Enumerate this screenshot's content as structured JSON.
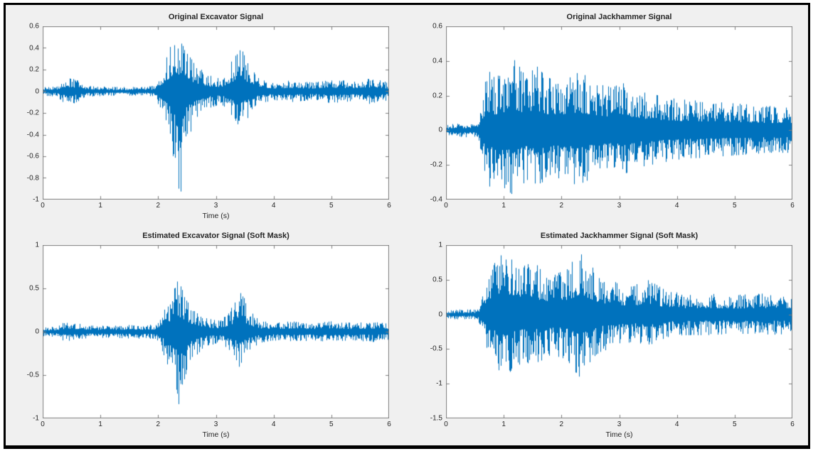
{
  "figure": {
    "background_color": "#f0f0f0",
    "frame_color": "#000000",
    "axes_box_color": "#808080",
    "line_color": "#0072BD",
    "text_color": "#262626"
  },
  "chart_data": [
    {
      "id": "original-excavator",
      "type": "line",
      "title": "Original Excavator Signal",
      "xlabel": "Time (s)",
      "ylabel": "",
      "xlim": [
        0,
        6
      ],
      "ylim": [
        -1,
        0.6
      ],
      "xticks": [
        0,
        1,
        2,
        3,
        4,
        5,
        6
      ],
      "yticks": [
        0.6,
        0.4,
        0.2,
        0,
        -0.2,
        -0.4,
        -0.6,
        -0.8,
        -1
      ],
      "grid": false,
      "legend": "none",
      "series_color": "#0072BD",
      "envelope": {
        "t": [
          0,
          0.25,
          0.35,
          0.5,
          0.65,
          0.8,
          1.2,
          1.6,
          1.95,
          2.05,
          2.2,
          2.3,
          2.38,
          2.5,
          2.65,
          2.85,
          3.1,
          3.3,
          3.42,
          3.55,
          3.75,
          4.0,
          4.3,
          4.7,
          5.0,
          5.4,
          5.7,
          6.0
        ],
        "pos": [
          0.04,
          0.05,
          0.11,
          0.12,
          0.09,
          0.05,
          0.04,
          0.04,
          0.05,
          0.14,
          0.4,
          0.57,
          0.5,
          0.35,
          0.25,
          0.15,
          0.12,
          0.3,
          0.45,
          0.28,
          0.12,
          0.08,
          0.1,
          0.08,
          0.11,
          0.09,
          0.12,
          0.08
        ],
        "neg": [
          -0.04,
          -0.05,
          -0.11,
          -0.12,
          -0.09,
          -0.05,
          -0.04,
          -0.04,
          -0.05,
          -0.18,
          -0.45,
          -0.75,
          -1.0,
          -0.45,
          -0.28,
          -0.16,
          -0.12,
          -0.25,
          -0.33,
          -0.25,
          -0.12,
          -0.08,
          -0.1,
          -0.08,
          -0.11,
          -0.09,
          -0.12,
          -0.08
        ]
      }
    },
    {
      "id": "original-jackhammer",
      "type": "line",
      "title": "Original Jackhammer Signal",
      "xlabel": "",
      "ylabel": "",
      "xlim": [
        0,
        6
      ],
      "ylim": [
        -0.4,
        0.6
      ],
      "xticks": [
        0,
        1,
        2,
        3,
        4,
        5,
        6
      ],
      "yticks": [
        0.6,
        0.4,
        0.2,
        0,
        -0.2,
        -0.4
      ],
      "grid": false,
      "legend": "none",
      "series_color": "#0072BD",
      "envelope": {
        "t": [
          0,
          0.15,
          0.55,
          0.62,
          0.7,
          0.85,
          1.0,
          1.15,
          1.25,
          1.4,
          1.55,
          1.7,
          1.9,
          2.1,
          2.3,
          2.5,
          2.7,
          2.9,
          3.1,
          3.4,
          3.7,
          4.0,
          4.4,
          4.8,
          5.2,
          5.6,
          6.0
        ],
        "pos": [
          0.03,
          0.04,
          0.04,
          0.15,
          0.36,
          0.3,
          0.34,
          0.42,
          0.38,
          0.3,
          0.38,
          0.32,
          0.28,
          0.32,
          0.34,
          0.3,
          0.27,
          0.25,
          0.28,
          0.22,
          0.2,
          0.18,
          0.17,
          0.16,
          0.15,
          0.14,
          0.14
        ],
        "neg": [
          -0.03,
          -0.04,
          -0.04,
          -0.15,
          -0.34,
          -0.3,
          -0.33,
          -0.37,
          -0.35,
          -0.3,
          -0.35,
          -0.3,
          -0.27,
          -0.3,
          -0.32,
          -0.28,
          -0.26,
          -0.24,
          -0.26,
          -0.21,
          -0.19,
          -0.17,
          -0.16,
          -0.15,
          -0.14,
          -0.13,
          -0.13
        ]
      }
    },
    {
      "id": "estimated-excavator-soft-mask",
      "type": "line",
      "title": "Estimated Excavator Signal (Soft Mask)",
      "xlabel": "Time (s)",
      "ylabel": "",
      "xlim": [
        0,
        6
      ],
      "ylim": [
        -1,
        1
      ],
      "xticks": [
        0,
        1,
        2,
        3,
        4,
        5,
        6
      ],
      "yticks": [
        1,
        0.5,
        0,
        -0.5,
        -1
      ],
      "grid": false,
      "legend": "none",
      "series_color": "#0072BD",
      "envelope": {
        "t": [
          0,
          0.25,
          0.35,
          0.5,
          0.65,
          0.8,
          1.2,
          1.6,
          1.95,
          2.05,
          2.2,
          2.3,
          2.38,
          2.5,
          2.65,
          2.85,
          3.1,
          3.3,
          3.42,
          3.55,
          3.75,
          4.0,
          4.3,
          4.7,
          5.0,
          5.4,
          5.7,
          6.0
        ],
        "pos": [
          0.05,
          0.06,
          0.1,
          0.11,
          0.09,
          0.07,
          0.07,
          0.08,
          0.08,
          0.15,
          0.4,
          0.63,
          0.55,
          0.35,
          0.25,
          0.15,
          0.13,
          0.3,
          0.55,
          0.28,
          0.13,
          0.1,
          0.12,
          0.1,
          0.12,
          0.1,
          0.12,
          0.09
        ],
        "neg": [
          -0.05,
          -0.06,
          -0.1,
          -0.11,
          -0.09,
          -0.07,
          -0.07,
          -0.08,
          -0.08,
          -0.18,
          -0.45,
          -0.65,
          -0.9,
          -0.45,
          -0.28,
          -0.16,
          -0.13,
          -0.28,
          -0.42,
          -0.25,
          -0.13,
          -0.1,
          -0.12,
          -0.1,
          -0.12,
          -0.1,
          -0.12,
          -0.09
        ]
      }
    },
    {
      "id": "estimated-jackhammer-soft-mask",
      "type": "line",
      "title": "Estimated Jackhammer Signal (Soft Mask)",
      "xlabel": "Time (s)",
      "ylabel": "",
      "xlim": [
        0,
        6
      ],
      "ylim": [
        -1.5,
        1
      ],
      "xticks": [
        0,
        1,
        2,
        3,
        4,
        5,
        6
      ],
      "yticks": [
        1,
        0.5,
        0,
        -0.5,
        -1,
        -1.5
      ],
      "grid": false,
      "legend": "none",
      "series_color": "#0072BD",
      "envelope": {
        "t": [
          0,
          0.15,
          0.55,
          0.65,
          0.75,
          0.9,
          1.05,
          1.2,
          1.35,
          1.5,
          1.7,
          1.9,
          2.1,
          2.3,
          2.45,
          2.6,
          2.8,
          3.0,
          3.2,
          3.5,
          3.8,
          4.1,
          4.5,
          5.0,
          5.5,
          6.0
        ],
        "pos": [
          0.05,
          0.07,
          0.07,
          0.3,
          0.75,
          0.85,
          0.95,
          0.9,
          0.7,
          0.75,
          0.65,
          0.6,
          0.65,
          0.9,
          0.8,
          0.6,
          0.5,
          0.45,
          0.4,
          0.5,
          0.35,
          0.3,
          0.3,
          0.28,
          0.3,
          0.28
        ],
        "neg": [
          -0.05,
          -0.07,
          -0.07,
          -0.3,
          -0.7,
          -0.8,
          -0.85,
          -0.8,
          -0.7,
          -0.72,
          -0.65,
          -0.6,
          -0.65,
          -0.95,
          -0.8,
          -0.6,
          -0.5,
          -0.45,
          -0.4,
          -0.45,
          -0.35,
          -0.3,
          -0.3,
          -0.28,
          -0.3,
          -0.28
        ]
      }
    }
  ]
}
